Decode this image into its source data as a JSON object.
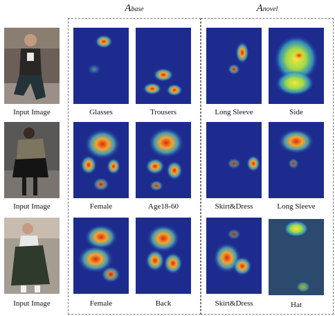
{
  "headers": {
    "base": {
      "main": "A",
      "sub": "base"
    },
    "novel": {
      "main": "A",
      "sub": "novel"
    }
  },
  "rows": [
    {
      "input_caption": "Input Image",
      "base": [
        "Glasses",
        "Trousers"
      ],
      "novel": [
        "Long Sleeve",
        "Side"
      ]
    },
    {
      "input_caption": "Input Image",
      "base": [
        "Female",
        "Age18-60"
      ],
      "novel": [
        "Skirt&Dress",
        "Long Sleeve"
      ]
    },
    {
      "input_caption": "Input Image",
      "base": [
        "Female",
        "Back"
      ],
      "novel": [
        "Skirt&Dress",
        "Hat"
      ]
    }
  ],
  "colors": {
    "heat_cold": "#1a2c9c",
    "heat_warm": "#f5e83a",
    "heat_hot": "#d92a1a",
    "panel_border": "#777777"
  }
}
